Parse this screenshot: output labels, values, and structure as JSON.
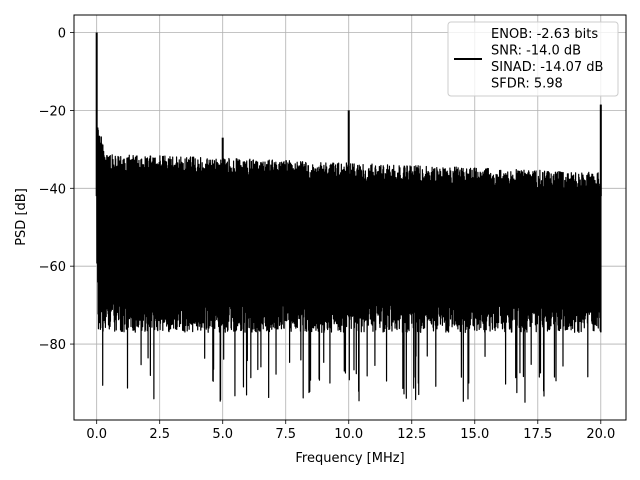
{
  "chart_data": {
    "type": "line",
    "title": "",
    "xlabel": "Frequency [MHz]",
    "ylabel": "PSD [dB]",
    "xlim": [
      -0.9,
      21.0
    ],
    "ylim": [
      -99.5,
      4.5
    ],
    "x_ticks": [
      0.0,
      2.5,
      5.0,
      7.5,
      10.0,
      12.5,
      15.0,
      17.5,
      20.0
    ],
    "x_tick_labels": [
      "0.0",
      "2.5",
      "5.0",
      "7.5",
      "10.0",
      "12.5",
      "15.0",
      "17.5",
      "20.0"
    ],
    "y_ticks": [
      0,
      -20,
      -40,
      -60,
      -80
    ],
    "y_tick_labels": [
      "0",
      "−20",
      "−40",
      "−60",
      "−80"
    ],
    "grid": true,
    "legend_position": "top-right",
    "series": [
      {
        "legend_lines": [
          "ENOB: -2.63 bits",
          "SNR: -14.0 dB",
          "SINAD: -14.07 dB",
          "SFDR: 5.98"
        ],
        "color": "#000000",
        "noise_envelope": {
          "x_range": [
            0.0,
            20.0
          ],
          "upper_start": -31,
          "upper_end": -36,
          "lower_typical": -75,
          "lower_min": -95
        },
        "peaks": [
          {
            "x": 0.0,
            "y": 0
          },
          {
            "x": 5.0,
            "y": -27
          },
          {
            "x": 10.0,
            "y": -20
          },
          {
            "x": 20.0,
            "y": -18.5
          }
        ]
      }
    ]
  }
}
